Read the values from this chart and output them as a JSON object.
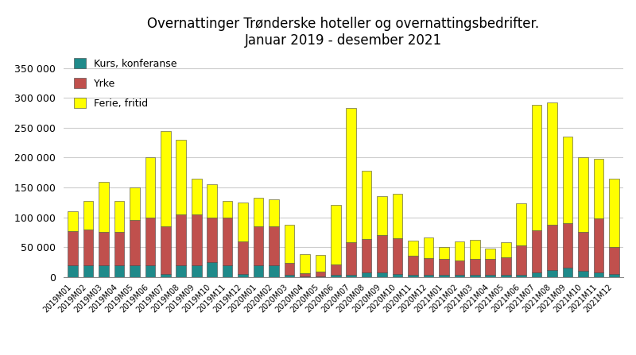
{
  "title_line1": "Overnattinger Trønderske hoteller og overnattingsbedrifter.",
  "title_line2": "Januar 2019 - desember 2021",
  "categories": [
    "2019M01",
    "2019M02",
    "2019M03",
    "2019M04",
    "2019M05",
    "2019M06",
    "2019M07",
    "2019M08",
    "2019M09",
    "2019M10",
    "2019M11",
    "2019M12",
    "2020M01",
    "2020M02",
    "2020M03",
    "2020M04",
    "2020M05",
    "2020M06",
    "2020M07",
    "2020M08",
    "2020M09",
    "2020M10",
    "2020M11",
    "2020M12",
    "2021M01",
    "2021M02",
    "2021M03",
    "2021M04",
    "2021M05",
    "2021M06",
    "2021M07",
    "2021M08",
    "2021M09",
    "2021M10",
    "2021M11",
    "2021M12"
  ],
  "kurs": [
    20000,
    20000,
    20000,
    20000,
    20000,
    20000,
    5000,
    20000,
    20000,
    25000,
    20000,
    5000,
    20000,
    20000,
    3000,
    1000,
    1000,
    3000,
    3000,
    8000,
    8000,
    5000,
    3000,
    3000,
    3000,
    3000,
    3000,
    3000,
    3000,
    3000,
    8000,
    12000,
    15000,
    10000,
    8000,
    5000
  ],
  "yrke": [
    57000,
    60000,
    55000,
    55000,
    75000,
    80000,
    80000,
    85000,
    85000,
    75000,
    80000,
    55000,
    65000,
    65000,
    20000,
    5000,
    8000,
    18000,
    55000,
    55000,
    62000,
    60000,
    33000,
    28000,
    27000,
    25000,
    27000,
    27000,
    30000,
    50000,
    70000,
    75000,
    75000,
    65000,
    90000,
    45000
  ],
  "ferie": [
    33000,
    48000,
    85000,
    53000,
    55000,
    100000,
    160000,
    125000,
    60000,
    55000,
    28000,
    65000,
    48000,
    45000,
    65000,
    32000,
    28000,
    100000,
    225000,
    115000,
    65000,
    75000,
    25000,
    35000,
    20000,
    32000,
    32000,
    18000,
    25000,
    70000,
    210000,
    205000,
    145000,
    125000,
    100000,
    115000
  ],
  "color_kurs": "#1F8A8A",
  "color_yrke": "#C0504D",
  "color_ferie": "#FFFF00",
  "ylim": [
    0,
    375000
  ],
  "yticks": [
    0,
    50000,
    100000,
    150000,
    200000,
    250000,
    300000,
    350000
  ]
}
